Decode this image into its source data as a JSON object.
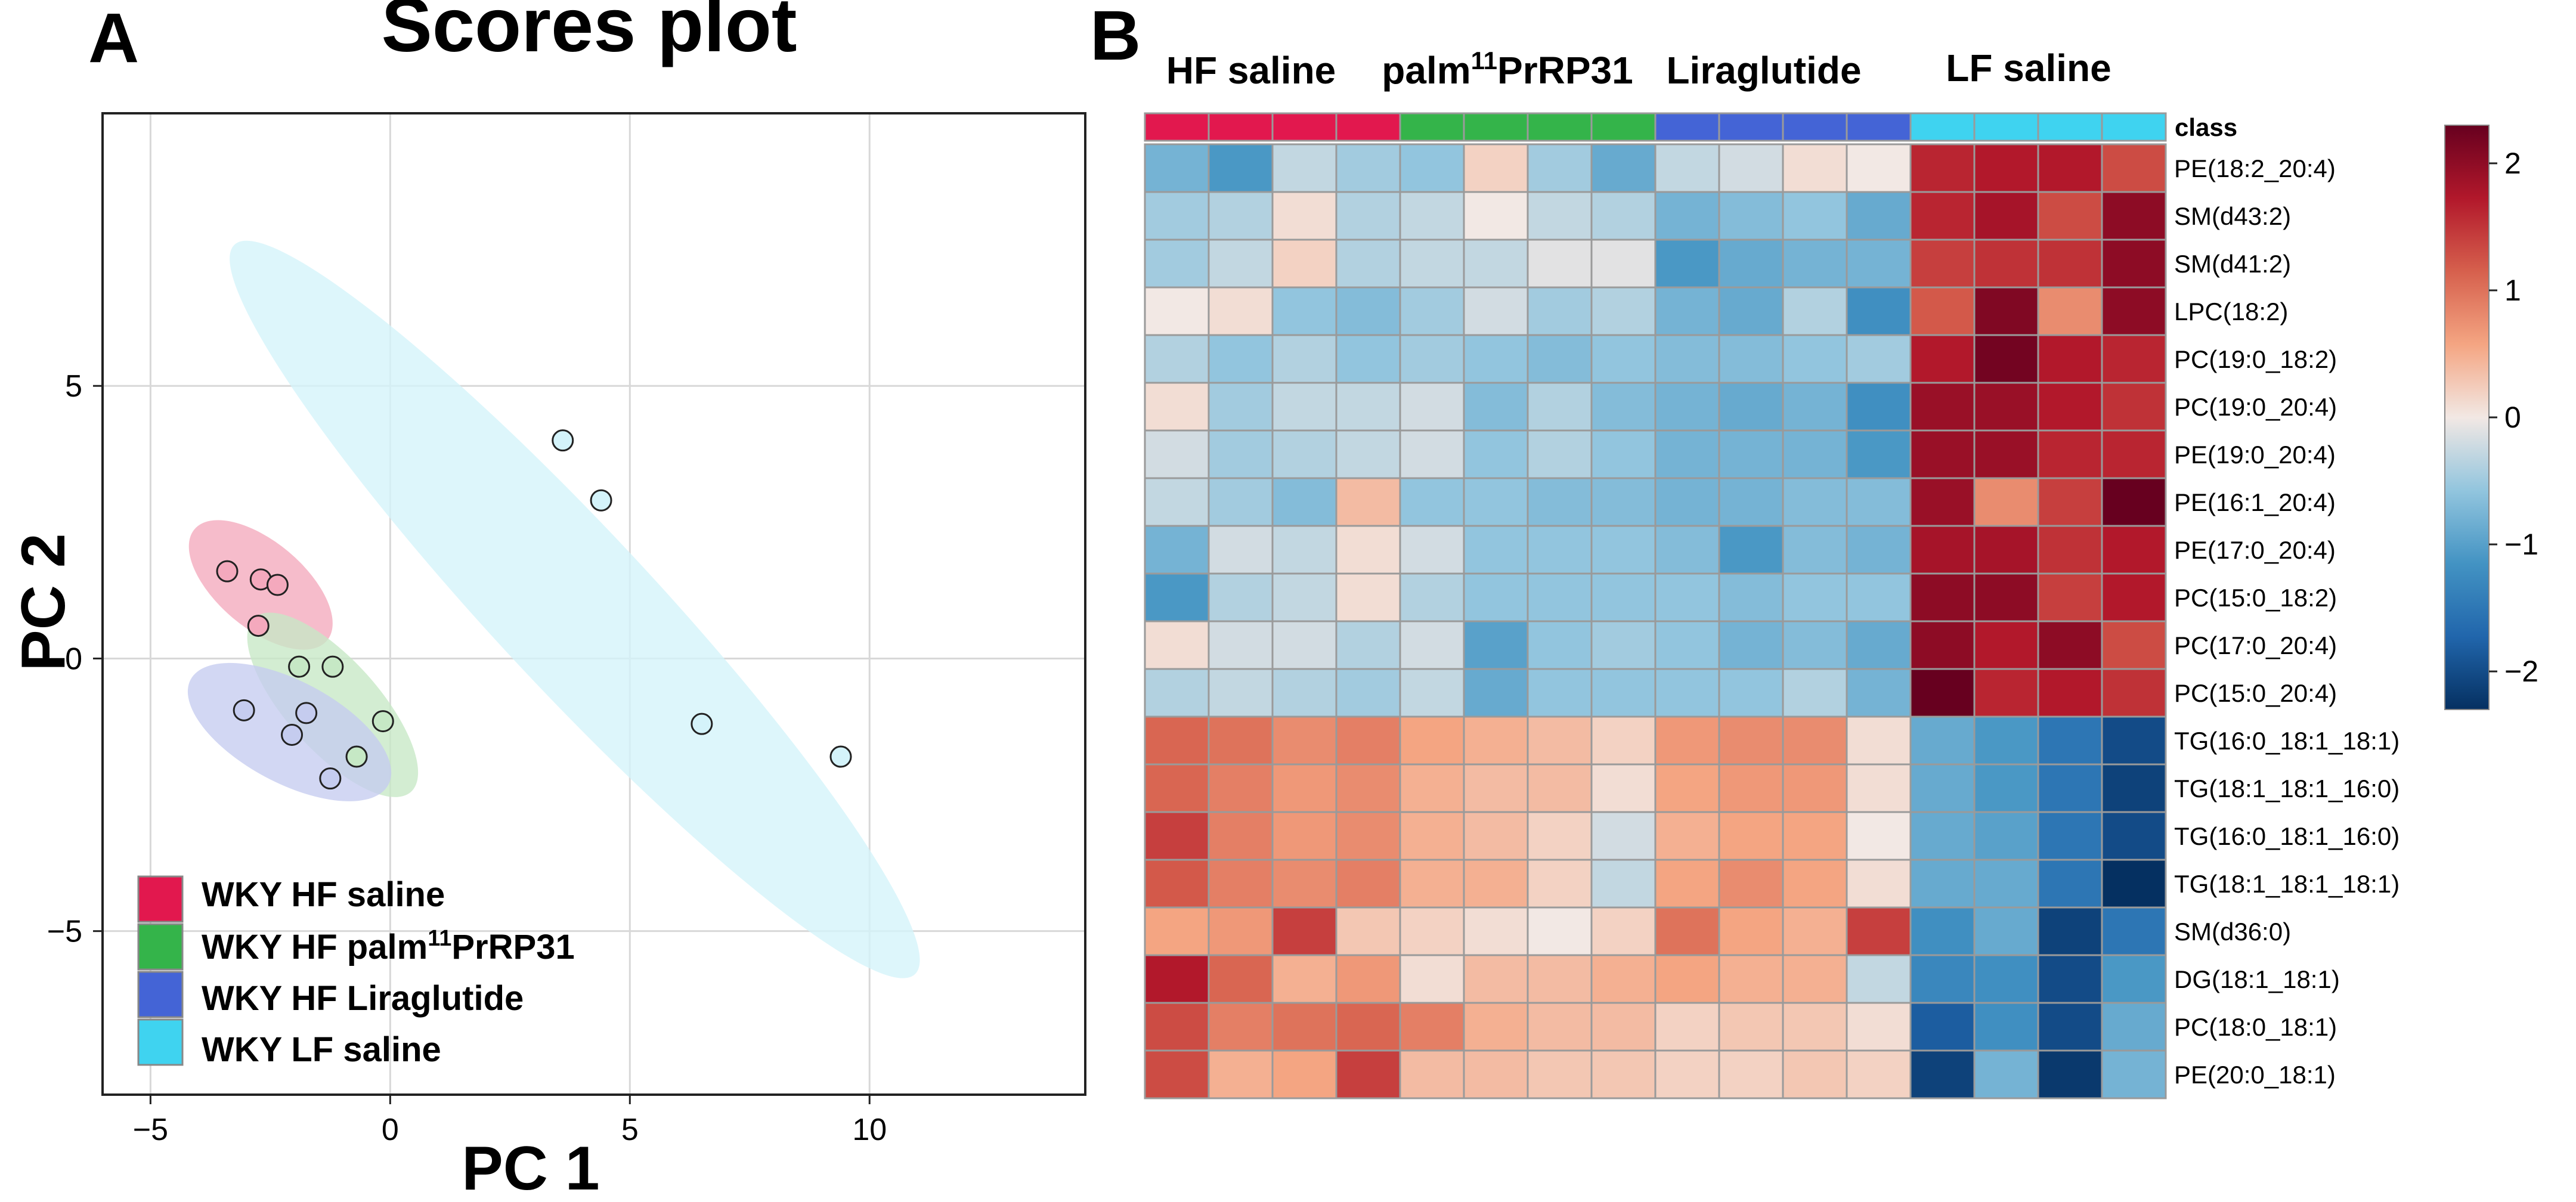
{
  "panel_a": {
    "letter": "A",
    "legend": {
      "items": [
        {
          "label": "WKY HF saline",
          "color": "#e2184e"
        },
        {
          "label_pre": "WKY HF palm",
          "label_sup": "11",
          "label_post": "PrRP31",
          "color": "#34b44a"
        },
        {
          "label": "WKY HF Liraglutide",
          "color": "#4464d6"
        },
        {
          "label": "WKY LF saline",
          "color": "#3fd3f0"
        }
      ]
    }
  },
  "panel_b": {
    "letter": "B",
    "group_titles": [
      {
        "text": "HF saline"
      },
      {
        "pre": "palm",
        "sup": "11",
        "post": "PrRP31"
      },
      {
        "text": "Liraglutide"
      },
      {
        "text": "LF saline"
      }
    ],
    "class_label": "class"
  },
  "chart_data": [
    {
      "type": "scatter",
      "title": "Scores plot",
      "xlabel": "PC 1",
      "ylabel": "PC 2",
      "xlim": [
        -6,
        14.5
      ],
      "ylim": [
        -8,
        10
      ],
      "xticks": [
        -5,
        0,
        5,
        10
      ],
      "yticks": [
        -5,
        0,
        5
      ],
      "grid": true,
      "legend_position": "bottom-left",
      "series": [
        {
          "name": "WKY HF saline",
          "color": "#e2184e",
          "fill": "#f4a9bd",
          "points": [
            [
              -3.4,
              1.6
            ],
            [
              -2.7,
              1.45
            ],
            [
              -2.35,
              1.35
            ],
            [
              -2.75,
              0.6
            ]
          ],
          "ellipse": {
            "cx": -2.7,
            "cy": 1.35,
            "rx": 1.7,
            "ry": 0.85,
            "angle_deg": -40
          }
        },
        {
          "name": "WKY HF palm11PrRP31",
          "color": "#34b44a",
          "fill": "#c6e8c5",
          "points": [
            [
              -1.9,
              -0.15
            ],
            [
              -1.2,
              -0.15
            ],
            [
              -0.15,
              -1.15
            ],
            [
              -0.7,
              -1.8
            ]
          ],
          "ellipse": {
            "cx": -1.2,
            "cy": -0.85,
            "rx": 2.3,
            "ry": 0.9,
            "angle_deg": -48
          }
        },
        {
          "name": "WKY HF Liraglutide",
          "color": "#4464d6",
          "fill": "#c5ccef",
          "points": [
            [
              -3.05,
              -0.95
            ],
            [
              -1.75,
              -1.0
            ],
            [
              -2.05,
              -1.4
            ],
            [
              -1.25,
              -2.2
            ]
          ],
          "ellipse": {
            "cx": -2.1,
            "cy": -1.35,
            "rx": 2.2,
            "ry": 1.0,
            "angle_deg": -28
          }
        },
        {
          "name": "WKY LF saline",
          "color": "#3fd3f0",
          "fill": "#d4f3fa",
          "points": [
            [
              3.6,
              4.0
            ],
            [
              4.4,
              2.9
            ],
            [
              6.5,
              -1.2
            ],
            [
              9.4,
              -1.8
            ]
          ],
          "ellipse": {
            "cx": 3.85,
            "cy": 0.9,
            "rx": 9.8,
            "ry": 1.55,
            "angle_deg": -47
          }
        }
      ]
    },
    {
      "type": "heatmap",
      "title": "",
      "colorbar": {
        "min": -2.3,
        "max": 2.3,
        "ticks": [
          2,
          1,
          0,
          -1,
          -2
        ],
        "tick_labels": [
          "2",
          "1",
          "0",
          "−1",
          "−2"
        ]
      },
      "class_colors": [
        "#e2184e",
        "#e2184e",
        "#e2184e",
        "#e2184e",
        "#34b44a",
        "#34b44a",
        "#34b44a",
        "#34b44a",
        "#4464d6",
        "#4464d6",
        "#4464d6",
        "#4464d6",
        "#3fd3f0",
        "#3fd3f0",
        "#3fd3f0",
        "#3fd3f0"
      ],
      "rows": [
        "PE(18:2_20:4)",
        "SM(d43:2)",
        "SM(d41:2)",
        "LPC(18:2)",
        "PC(19:0_18:2)",
        "PC(19:0_20:4)",
        "PE(19:0_20:4)",
        "PE(16:1_20:4)",
        "PE(17:0_20:4)",
        "PC(15:0_18:2)",
        "PC(17:0_20:4)",
        "PC(15:0_20:4)",
        "TG(16:0_18:1_18:1)",
        "TG(18:1_18:1_16:0)",
        "TG(16:0_18:1_16:0)",
        "TG(18:1_18:1_18:1)",
        "SM(d36:0)",
        "DG(18:1_18:1)",
        "PC(18:0_18:1)",
        "PE(20:0_18:1)"
      ],
      "values": [
        [
          -0.8,
          -1.1,
          -0.3,
          -0.5,
          -0.6,
          0.2,
          -0.5,
          -0.9,
          -0.3,
          -0.2,
          0.1,
          0.0,
          1.6,
          1.7,
          1.7,
          1.3
        ],
        [
          -0.5,
          -0.4,
          0.1,
          -0.4,
          -0.3,
          0.0,
          -0.3,
          -0.4,
          -0.8,
          -0.7,
          -0.6,
          -0.9,
          1.6,
          1.8,
          1.3,
          2.0
        ],
        [
          -0.5,
          -0.3,
          0.2,
          -0.4,
          -0.3,
          -0.3,
          -0.1,
          -0.1,
          -1.1,
          -0.9,
          -0.8,
          -0.8,
          1.4,
          1.5,
          1.5,
          2.0
        ],
        [
          0.0,
          0.1,
          -0.6,
          -0.7,
          -0.5,
          -0.2,
          -0.5,
          -0.4,
          -0.8,
          -0.9,
          -0.4,
          -1.2,
          1.2,
          2.1,
          0.8,
          2.0
        ],
        [
          -0.4,
          -0.6,
          -0.4,
          -0.6,
          -0.5,
          -0.6,
          -0.7,
          -0.6,
          -0.7,
          -0.7,
          -0.6,
          -0.5,
          1.7,
          2.2,
          1.7,
          1.6
        ],
        [
          0.1,
          -0.5,
          -0.3,
          -0.3,
          -0.2,
          -0.7,
          -0.4,
          -0.7,
          -0.8,
          -0.9,
          -0.8,
          -1.2,
          1.9,
          1.9,
          1.7,
          1.5
        ],
        [
          -0.2,
          -0.5,
          -0.4,
          -0.3,
          -0.2,
          -0.6,
          -0.4,
          -0.6,
          -0.8,
          -0.8,
          -0.8,
          -1.1,
          1.9,
          1.9,
          1.6,
          1.6
        ],
        [
          -0.3,
          -0.5,
          -0.7,
          0.4,
          -0.6,
          -0.6,
          -0.7,
          -0.7,
          -0.8,
          -0.8,
          -0.7,
          -0.7,
          1.9,
          0.8,
          1.4,
          2.3
        ],
        [
          -0.8,
          -0.2,
          -0.3,
          0.1,
          -0.2,
          -0.6,
          -0.6,
          -0.6,
          -0.7,
          -1.1,
          -0.7,
          -0.8,
          1.8,
          1.8,
          1.5,
          1.7
        ],
        [
          -1.1,
          -0.4,
          -0.3,
          0.1,
          -0.4,
          -0.6,
          -0.6,
          -0.6,
          -0.6,
          -0.7,
          -0.6,
          -0.6,
          2.0,
          2.0,
          1.4,
          1.7
        ],
        [
          0.1,
          -0.2,
          -0.2,
          -0.4,
          -0.2,
          -1.0,
          -0.6,
          -0.5,
          -0.6,
          -0.8,
          -0.7,
          -0.9,
          2.0,
          1.7,
          2.0,
          1.3
        ],
        [
          -0.4,
          -0.3,
          -0.4,
          -0.5,
          -0.3,
          -0.9,
          -0.6,
          -0.6,
          -0.6,
          -0.6,
          -0.4,
          -0.8,
          2.3,
          1.6,
          1.7,
          1.5
        ],
        [
          1.1,
          1.0,
          0.8,
          0.9,
          0.6,
          0.5,
          0.4,
          0.2,
          0.7,
          0.8,
          0.8,
          0.1,
          -0.9,
          -1.1,
          -1.5,
          -2.0
        ],
        [
          1.1,
          0.9,
          0.7,
          0.8,
          0.5,
          0.4,
          0.4,
          0.1,
          0.6,
          0.7,
          0.7,
          0.1,
          -0.9,
          -1.1,
          -1.5,
          -2.1
        ],
        [
          1.4,
          0.9,
          0.7,
          0.8,
          0.5,
          0.4,
          0.2,
          -0.2,
          0.5,
          0.6,
          0.6,
          0.0,
          -0.9,
          -1.0,
          -1.5,
          -2.0
        ],
        [
          1.2,
          0.9,
          0.8,
          0.9,
          0.5,
          0.5,
          0.2,
          -0.3,
          0.6,
          0.8,
          0.6,
          0.1,
          -0.9,
          -0.9,
          -1.5,
          -2.3
        ],
        [
          0.6,
          0.7,
          1.4,
          0.3,
          0.2,
          0.1,
          0.0,
          0.2,
          1.0,
          0.6,
          0.5,
          1.4,
          -1.2,
          -0.9,
          -2.1,
          -1.5
        ],
        [
          1.7,
          1.1,
          0.5,
          0.7,
          0.1,
          0.4,
          0.4,
          0.5,
          0.6,
          0.5,
          0.5,
          -0.3,
          -1.3,
          -1.2,
          -2.0,
          -1.1
        ],
        [
          1.3,
          0.9,
          1.0,
          1.1,
          0.9,
          0.5,
          0.4,
          0.4,
          0.2,
          0.3,
          0.3,
          0.1,
          -1.8,
          -1.2,
          -2.0,
          -0.9
        ],
        [
          1.3,
          0.5,
          0.6,
          1.4,
          0.4,
          0.4,
          0.3,
          0.3,
          0.2,
          0.2,
          0.3,
          0.2,
          -2.1,
          -0.8,
          -2.2,
          -0.8
        ]
      ]
    }
  ]
}
